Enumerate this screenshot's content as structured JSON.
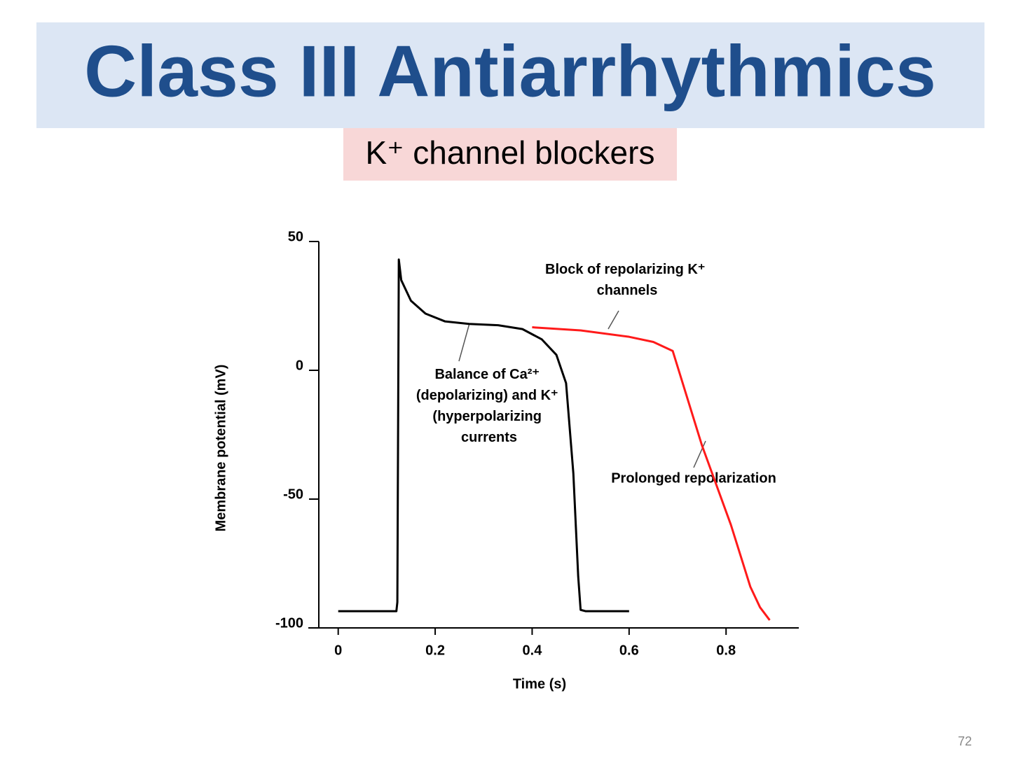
{
  "slide": {
    "title": "Class III Antiarrhythmics",
    "subtitle": "K⁺ channel blockers",
    "page_number": "72"
  },
  "chart_data": {
    "type": "line",
    "x_label": "Time (s)",
    "y_label": "Membrane potential (mV)",
    "xlim": [
      -0.04,
      0.95
    ],
    "ylim": [
      -100,
      50
    ],
    "xticks": [
      0,
      0.2,
      0.4,
      0.6,
      0.8
    ],
    "yticks": [
      -100,
      -50,
      0,
      50
    ],
    "series": [
      {
        "color": "#000000",
        "x": [
          0,
          0.12,
          0.122,
          0.125,
          0.13,
          0.15,
          0.18,
          0.22,
          0.27,
          0.33,
          0.38,
          0.42,
          0.45,
          0.47,
          0.485,
          0.495,
          0.5,
          0.51,
          0.6
        ],
        "values": [
          -93.5,
          -93.5,
          -90,
          43,
          35,
          27,
          22,
          19,
          18,
          17.5,
          16,
          12,
          6,
          -5,
          -40,
          -80,
          -93,
          -93.5,
          -93.5
        ]
      },
      {
        "color": "#ff1a1a",
        "x": [
          0.4,
          0.5,
          0.6,
          0.65,
          0.69,
          0.75,
          0.81,
          0.85,
          0.87,
          0.89
        ],
        "values": [
          16.7,
          15.5,
          13,
          11,
          7.5,
          -29,
          -60,
          -84,
          -92,
          -97
        ]
      }
    ],
    "annotations": [
      {
        "lines": [
          "Block of repolarizing K⁺",
          "channels"
        ]
      },
      {
        "lines": [
          "Balance of Ca²⁺",
          "(depolarizing) and K⁺",
          "(hyperpolarizing",
          "currents"
        ]
      },
      {
        "lines": [
          "Prolonged repolarization"
        ]
      }
    ]
  }
}
